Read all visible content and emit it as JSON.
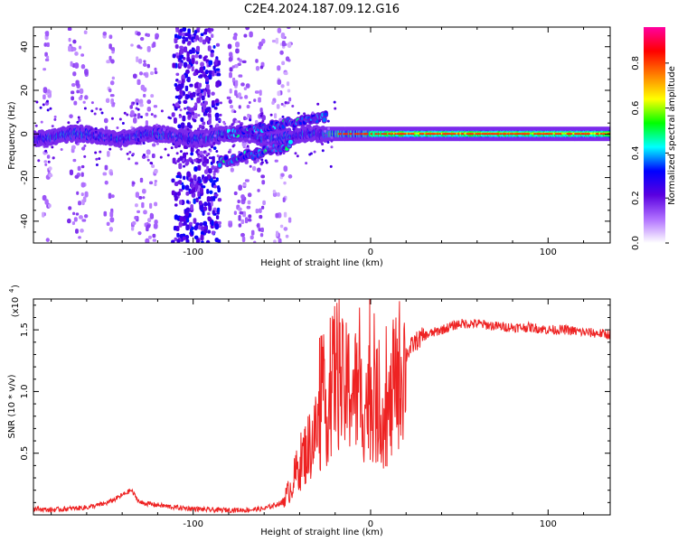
{
  "title": "C2E4.2024.187.09.12.G16",
  "chart_data": [
    {
      "type": "heatmap",
      "xlabel": "Height of straight line (km)",
      "ylabel": "Frequency (Hz)",
      "xlim": [
        -190,
        135
      ],
      "ylim": [
        -50,
        49
      ],
      "xticks": [
        -100,
        0,
        100
      ],
      "xtick_labels": [
        "-100",
        "0",
        "100"
      ],
      "yticks": [
        -40,
        -20,
        0,
        20,
        40
      ],
      "ytick_labels": [
        "-40",
        "-20",
        "0",
        "20",
        "40"
      ],
      "colorbar": {
        "label": "Normalized spectral amplitude",
        "range": [
          0,
          0.96
        ],
        "ticks": [
          0.0,
          0.2,
          0.4,
          0.6,
          0.8
        ],
        "tick_labels": [
          "0.0",
          "0.2",
          "0.4",
          "0.6",
          "0.8"
        ],
        "colormap": [
          "#ffffff",
          "#b070ff",
          "#5a00e0",
          "#0000ff",
          "#00ffff",
          "#00ff00",
          "#ffff00",
          "#ff8000",
          "#ff0000",
          "#ff00a0"
        ]
      },
      "features": [
        {
          "name": "main-trace",
          "x_from": -190,
          "x_to": 135,
          "freq_hz": 0,
          "note": "carrier near 0 Hz, strongest (red) for x > -20"
        },
        {
          "name": "upper-branch",
          "x_from": -80,
          "x_to": -25,
          "freq_start_hz": 0,
          "freq_end_hz": 8
        },
        {
          "name": "lower-branch",
          "x_from": -85,
          "x_to": -45,
          "freq_start_hz": -13,
          "freq_end_hz": -5
        },
        {
          "name": "scatter-band",
          "x_from": -115,
          "x_to": -85,
          "freq_range_hz": [
            -50,
            49
          ]
        }
      ]
    },
    {
      "type": "line",
      "xlabel": "Height of straight line (km)",
      "ylabel": "SNR (10 * v/v)",
      "y_multiplier": "(x10",
      "y_multiplier_exp": "4",
      "xlim": [
        -190,
        135
      ],
      "ylim": [
        0,
        1.75
      ],
      "xticks": [
        -100,
        0,
        100
      ],
      "xtick_labels": [
        "-100",
        "0",
        "100"
      ],
      "yticks": [
        0.5,
        1.0,
        1.5
      ],
      "ytick_labels": [
        "0.5",
        "1.0",
        "1.5"
      ],
      "series_color": "#ee2222",
      "series": [
        {
          "x": [
            -190,
            -180,
            -170,
            -160,
            -150,
            -145,
            -140,
            -135,
            -130,
            -120,
            -110,
            -100,
            -90,
            -80,
            -70,
            -60,
            -50,
            -45,
            -40,
            -35,
            -30,
            -25,
            -22,
            -20,
            -18,
            -15,
            -10,
            -5,
            0,
            5,
            10,
            15,
            20,
            25,
            30,
            40,
            50,
            60,
            70,
            80,
            90,
            100,
            110,
            120,
            130,
            135
          ],
          "y": [
            0.05,
            0.04,
            0.05,
            0.06,
            0.09,
            0.12,
            0.16,
            0.2,
            0.1,
            0.08,
            0.06,
            0.05,
            0.04,
            0.04,
            0.04,
            0.05,
            0.1,
            0.22,
            0.42,
            0.55,
            0.7,
            0.85,
            1.0,
            1.2,
            1.1,
            1.0,
            1.05,
            0.9,
            0.95,
            0.85,
            0.8,
            1.1,
            1.3,
            1.4,
            1.45,
            1.5,
            1.55,
            1.55,
            1.53,
            1.52,
            1.52,
            1.5,
            1.5,
            1.48,
            1.47,
            1.46
          ]
        }
      ]
    }
  ]
}
